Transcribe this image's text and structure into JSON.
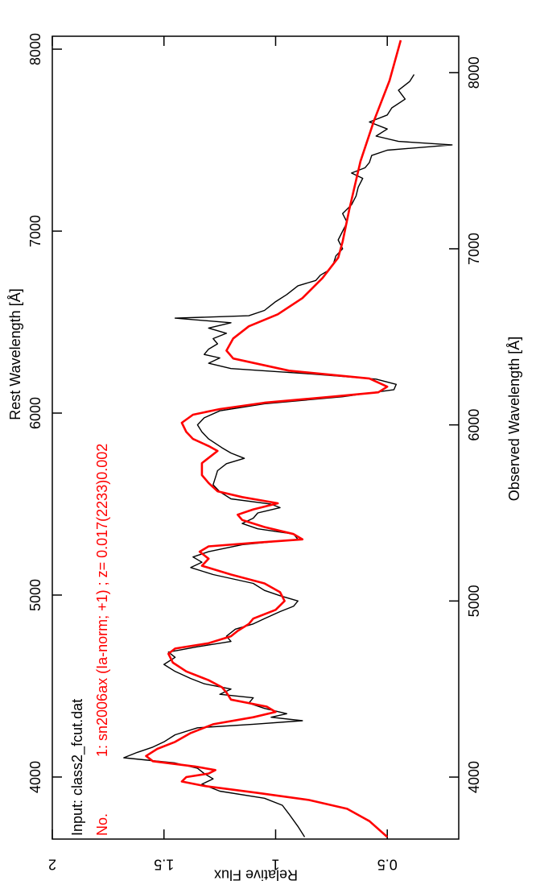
{
  "chart_data": {
    "type": "line",
    "xlabel": "Observed Wavelength [Å]",
    "x2label": "Rest Wavelength [Å]",
    "ylabel": "Relative Flux",
    "annotations": [
      "Input: class2_fcut.dat",
      "No.",
      "1: sn2006ax (Ia-norm; +1) ; z= 0.017(2233)0.002"
    ],
    "xlim": [
      3648,
      8207
    ],
    "xticks": [
      4000,
      5000,
      6000,
      7000,
      8000
    ],
    "x2lim": [
      3659,
      8071
    ],
    "x2ticks": [
      4000,
      5000,
      6000,
      7000,
      8000
    ],
    "ylim": [
      0.18,
      2
    ],
    "yticks": [
      0.5,
      1,
      1.5,
      2
    ],
    "series": [
      {
        "name": "Input: class2_fcut.dat",
        "color": "#000000",
        "x": [
          3660,
          3720,
          3790,
          3840,
          3880,
          3920,
          3960,
          3990,
          4020,
          4050,
          4080,
          4110,
          4140,
          4170,
          4200,
          4240,
          4280,
          4300,
          4320,
          4340,
          4360,
          4390,
          4420,
          4450,
          4470,
          4500,
          4530,
          4560,
          4600,
          4640,
          4680,
          4710,
          4740,
          4770,
          4800,
          4840,
          4870,
          4900,
          4940,
          4970,
          5000,
          5030,
          5060,
          5100,
          5150,
          5190,
          5220,
          5250,
          5280,
          5320,
          5350,
          5380,
          5410,
          5440,
          5470,
          5500,
          5530,
          5550,
          5580,
          5620,
          5660,
          5700,
          5740,
          5780,
          5810,
          5840,
          5870,
          5920,
          5960,
          6000,
          6040,
          6080,
          6120,
          6160,
          6200,
          6230,
          6260,
          6290,
          6320,
          6350,
          6380,
          6400,
          6430,
          6460,
          6490,
          6520,
          6550,
          6580,
          6606,
          6620,
          6650,
          6700,
          6740,
          6790,
          6820,
          6850,
          6880,
          6920,
          6960,
          7000,
          7050,
          7100,
          7150,
          7200,
          7250,
          7300,
          7350,
          7400,
          7430,
          7460,
          7490,
          7530,
          7560,
          7590,
          7610,
          7640,
          7680,
          7720,
          7760,
          7800,
          7850,
          7900,
          7950,
          7990
        ],
        "values": [
          0.87,
          0.9,
          0.94,
          0.97,
          1.05,
          1.25,
          1.33,
          1.28,
          1.32,
          1.35,
          1.45,
          1.68,
          1.62,
          1.55,
          1.5,
          1.45,
          1.35,
          1.1,
          0.88,
          1.02,
          0.95,
          1.05,
          1.12,
          1.1,
          1.25,
          1.2,
          1.32,
          1.38,
          1.45,
          1.5,
          1.45,
          1.48,
          1.35,
          1.2,
          1.22,
          1.18,
          1.1,
          1.05,
          0.98,
          0.92,
          0.9,
          0.98,
          1.05,
          1.1,
          1.28,
          1.38,
          1.33,
          1.37,
          1.3,
          1.15,
          0.9,
          0.92,
          1.08,
          1.15,
          1.1,
          1.08,
          0.98,
          1.02,
          1.2,
          1.25,
          1.28,
          1.27,
          1.26,
          1.22,
          1.14,
          1.2,
          1.24,
          1.3,
          1.33,
          1.35,
          1.32,
          1.25,
          1.05,
          0.7,
          0.47,
          0.46,
          0.55,
          0.85,
          1.2,
          1.3,
          1.25,
          1.32,
          1.3,
          1.26,
          1.28,
          1.22,
          1.3,
          1.2,
          1.45,
          1.12,
          1.05,
          1.0,
          0.95,
          0.9,
          0.82,
          0.8,
          0.76,
          0.74,
          0.73,
          0.7,
          0.72,
          0.7,
          0.68,
          0.7,
          0.66,
          0.64,
          0.63,
          0.61,
          0.66,
          0.6,
          0.58,
          0.57,
          0.5,
          0.21,
          0.45,
          0.55,
          0.5,
          0.58,
          0.5,
          0.48,
          0.42,
          0.45,
          0.4,
          0.38
        ]
      },
      {
        "name": "1: sn2006ax (Ia-norm; +1) ; z= 0.017(2233)0.002",
        "color": "#ff0000",
        "x": [
          3660,
          3750,
          3820,
          3870,
          3910,
          3950,
          3975,
          4000,
          4020,
          4040,
          4060,
          4090,
          4120,
          4160,
          4200,
          4250,
          4300,
          4340,
          4370,
          4400,
          4440,
          4480,
          4510,
          4550,
          4600,
          4650,
          4700,
          4730,
          4760,
          4800,
          4830,
          4870,
          4900,
          4950,
          5000,
          5050,
          5100,
          5150,
          5200,
          5240,
          5280,
          5310,
          5330,
          5350,
          5380,
          5420,
          5460,
          5490,
          5520,
          5555,
          5590,
          5623,
          5670,
          5715,
          5783,
          5852,
          5880,
          5920,
          5960,
          6012,
          6058,
          6090,
          6126,
          6160,
          6185,
          6217,
          6263,
          6308,
          6377,
          6422,
          6491,
          6560,
          6628,
          6720,
          6834,
          6949,
          7040,
          7223,
          7497,
          7726,
          7955,
          8184
        ],
        "values": [
          0.5,
          0.58,
          0.68,
          0.85,
          1.08,
          1.32,
          1.42,
          1.4,
          1.3,
          1.27,
          1.36,
          1.55,
          1.58,
          1.53,
          1.45,
          1.38,
          1.28,
          1.1,
          1.0,
          1.04,
          1.2,
          1.22,
          1.24,
          1.3,
          1.4,
          1.46,
          1.48,
          1.45,
          1.3,
          1.2,
          1.17,
          1.12,
          1.1,
          1.0,
          0.96,
          0.98,
          1.05,
          1.2,
          1.33,
          1.3,
          1.34,
          1.3,
          1.1,
          0.88,
          0.92,
          1.05,
          1.15,
          1.17,
          1.1,
          0.99,
          1.15,
          1.26,
          1.3,
          1.33,
          1.33,
          1.26,
          1.3,
          1.37,
          1.4,
          1.42,
          1.37,
          1.25,
          1.05,
          0.75,
          0.54,
          0.5,
          0.58,
          0.94,
          1.19,
          1.22,
          1.19,
          1.12,
          0.99,
          0.88,
          0.79,
          0.72,
          0.7,
          0.67,
          0.62,
          0.56,
          0.49,
          0.44
        ]
      }
    ]
  }
}
